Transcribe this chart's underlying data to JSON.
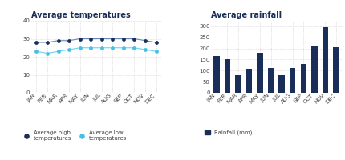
{
  "months": [
    "JAN",
    "FEB",
    "MAR",
    "APR",
    "MAY",
    "JUN",
    "JUL",
    "AUG",
    "SEP",
    "OCT",
    "NOV",
    "DEC"
  ],
  "temp_high": [
    28,
    28,
    29,
    29,
    30,
    30,
    30,
    30,
    30,
    30,
    29,
    28
  ],
  "temp_low": [
    23,
    22,
    23,
    24,
    25,
    25,
    25,
    25,
    25,
    25,
    24,
    23
  ],
  "rainfall": [
    165,
    153,
    80,
    108,
    180,
    112,
    80,
    112,
    130,
    208,
    295,
    205
  ],
  "title_temp": "Average temperatures",
  "title_rain": "Average rainfall",
  "legend_high": "Average high\ntemperatures",
  "legend_low": "Average low\ntemperatures",
  "legend_rain": "Rainfall (mm)",
  "color_high": "#1a2e5a",
  "color_low": "#45c0e8",
  "color_bar": "#1a2e5a",
  "color_line_high": "#6888bb",
  "color_line_low": "#70d0f0",
  "temp_ylim": [
    0,
    40
  ],
  "temp_yticks": [
    0,
    10,
    20,
    30,
    40
  ],
  "rain_ylim": [
    0,
    325
  ],
  "rain_yticks": [
    0,
    50,
    100,
    150,
    200,
    250,
    300
  ],
  "background_color": "#ffffff",
  "grid_color": "#bbbbbb",
  "title_fontsize": 7,
  "tick_fontsize": 5,
  "legend_fontsize": 5,
  "title_color": "#1a2e5a"
}
